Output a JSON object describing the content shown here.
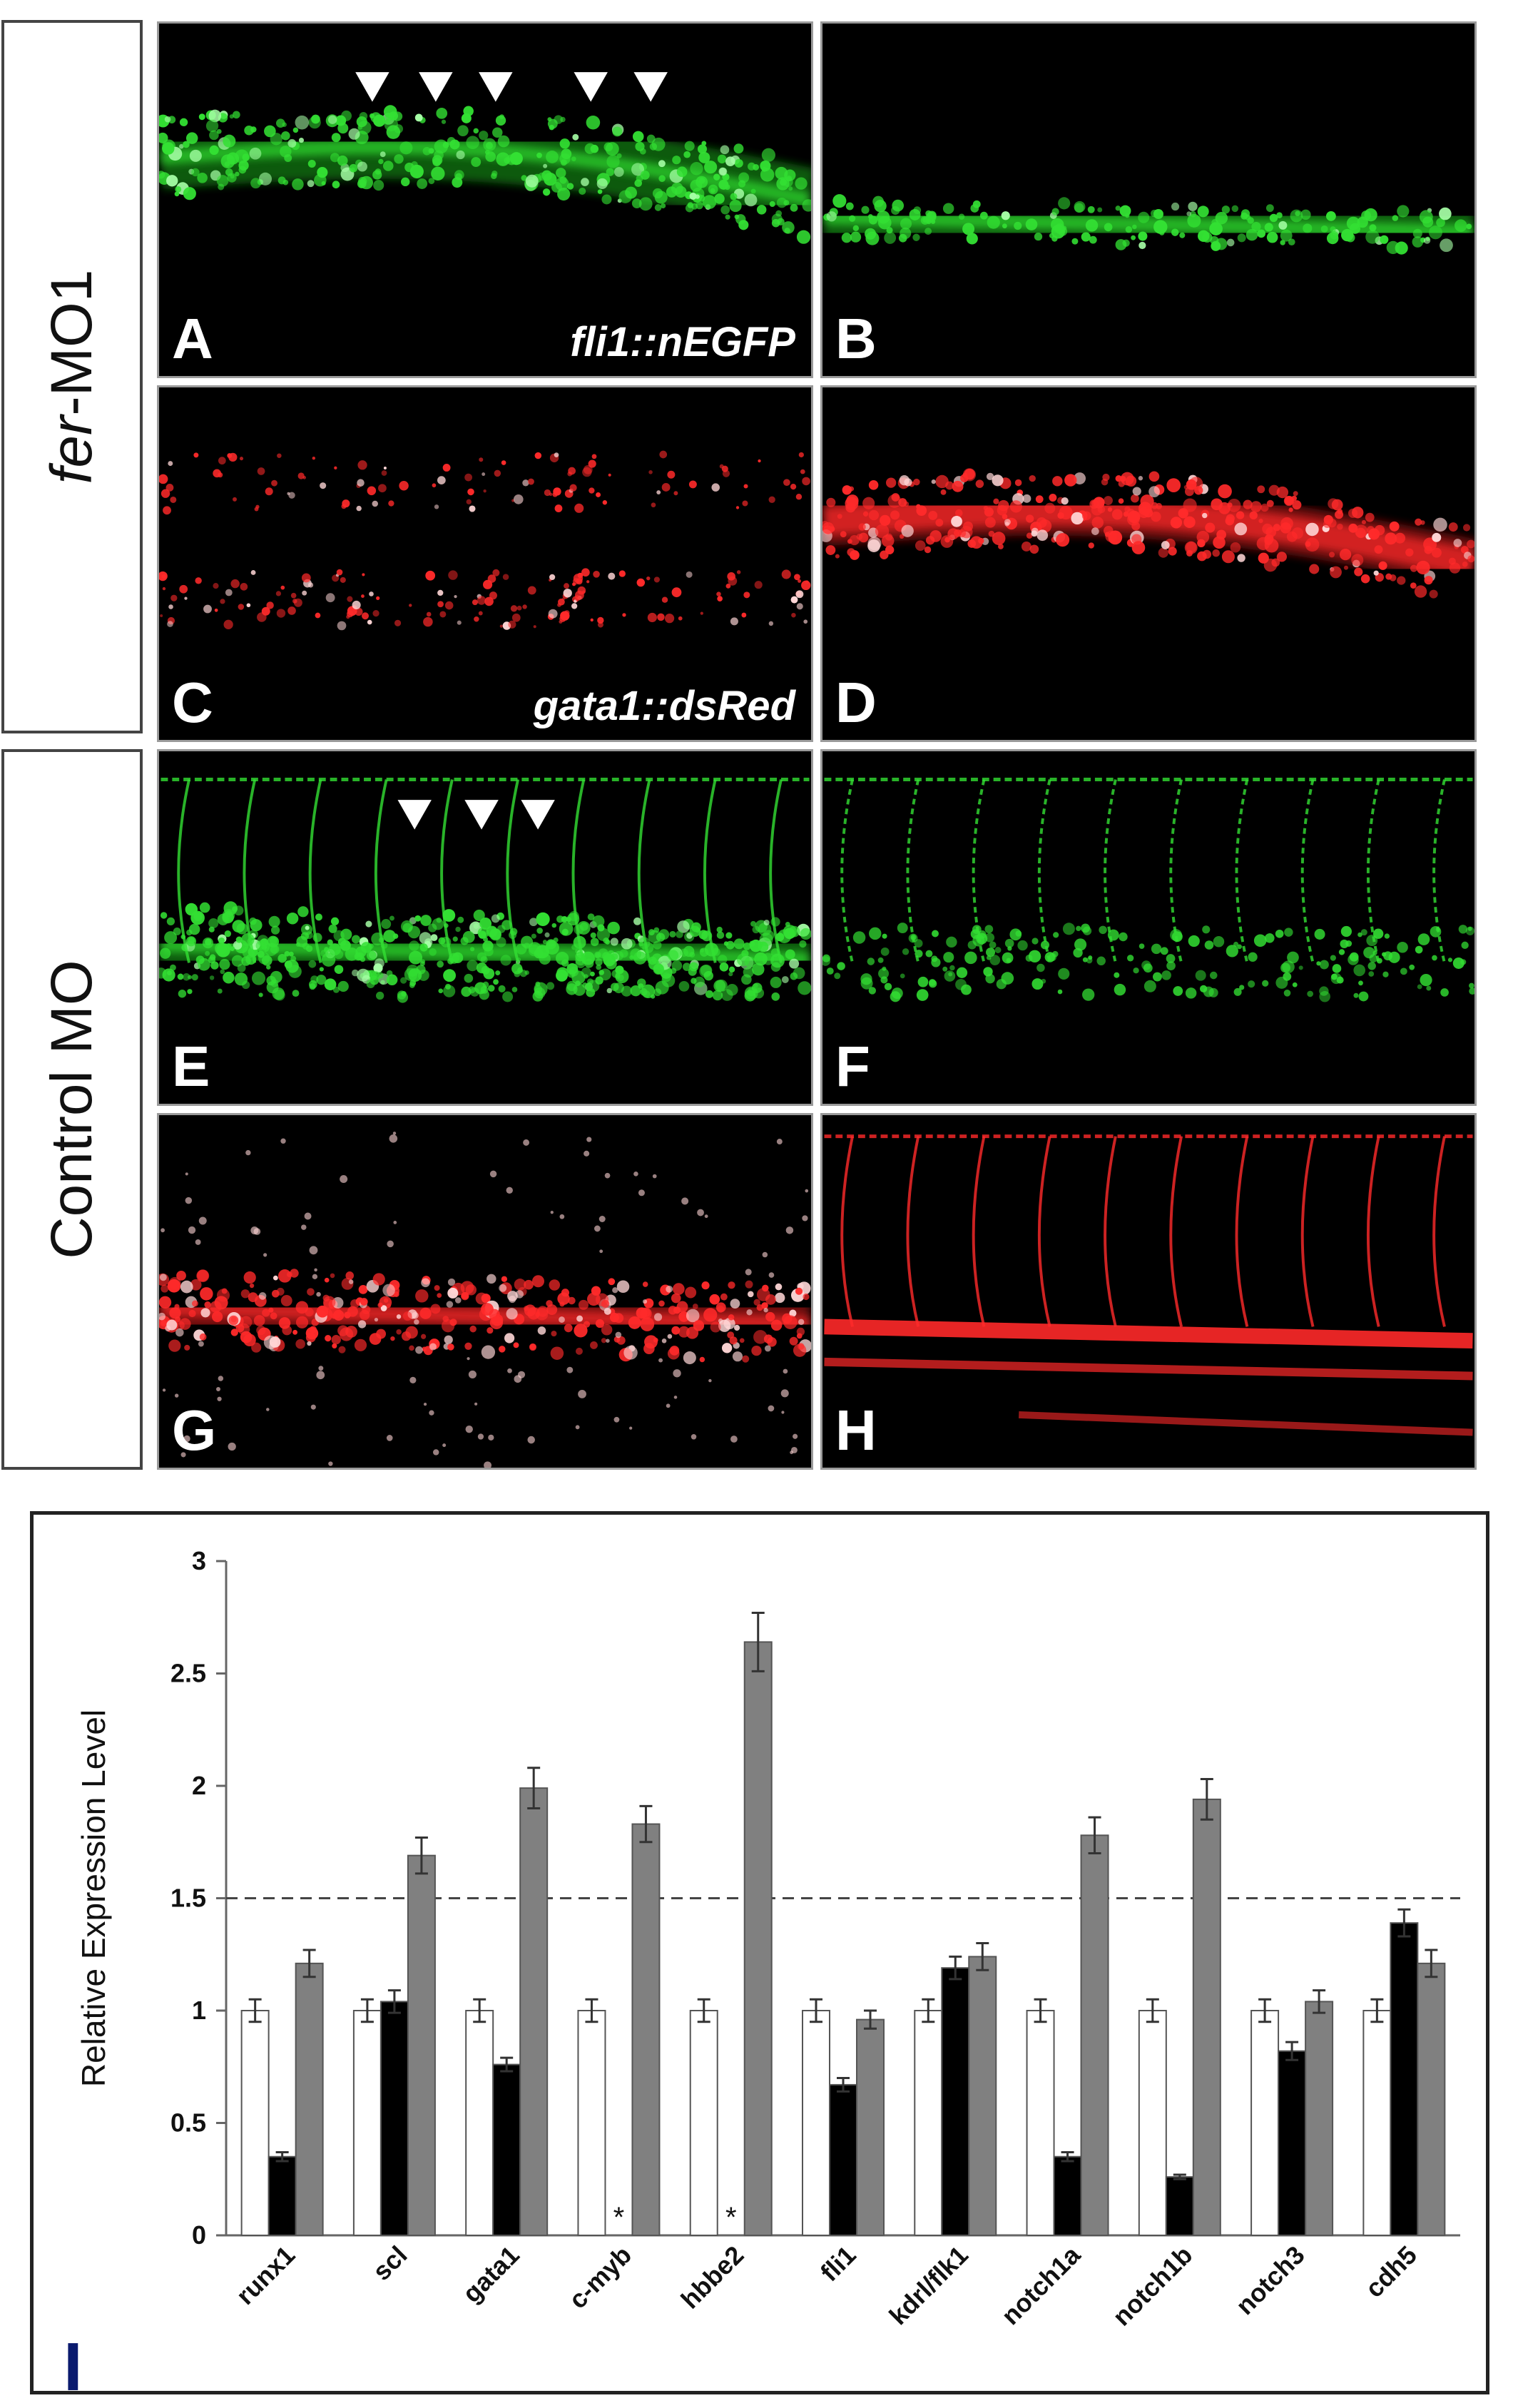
{
  "row_labels": {
    "top": {
      "gene": "fer",
      "suffix": "-MO1"
    },
    "bottom": "Control MO"
  },
  "panels": [
    {
      "id": "A",
      "letter": "A",
      "color": "green",
      "pattern": "dense-band",
      "text": "fli1::nEGFP",
      "arrowheads": 5
    },
    {
      "id": "B",
      "letter": "B",
      "color": "green",
      "pattern": "sparse-band",
      "text": "",
      "arrowheads": 0
    },
    {
      "id": "C",
      "letter": "C",
      "color": "red",
      "pattern": "dots",
      "text": "gata1::dsRed",
      "arrowheads": 0
    },
    {
      "id": "D",
      "letter": "D",
      "color": "red",
      "pattern": "bright-band",
      "text": "",
      "arrowheads": 0
    },
    {
      "id": "E",
      "letter": "E",
      "color": "green",
      "pattern": "dense-band-vessels",
      "text": "",
      "arrowheads": 3
    },
    {
      "id": "F",
      "letter": "F",
      "color": "green",
      "pattern": "vessels",
      "text": "",
      "arrowheads": 0
    },
    {
      "id": "G",
      "letter": "G",
      "color": "red",
      "pattern": "dots-band",
      "text": "",
      "arrowheads": 0
    },
    {
      "id": "H",
      "letter": "H",
      "color": "red",
      "pattern": "vessels-red",
      "text": "",
      "arrowheads": 0
    }
  ],
  "chart_data": {
    "type": "bar",
    "panel_letter": "I",
    "ylabel": "Relative Expression Level",
    "ylim": [
      0,
      3
    ],
    "yticks": [
      "0",
      "0.5",
      "1",
      "1.5",
      "2",
      "2.5",
      "3"
    ],
    "reference_line": 1.5,
    "categories": [
      "runx1",
      "scl",
      "gata1",
      "c-myb",
      "hbbe2",
      "fli1",
      "kdrl/flk1",
      "notch1a",
      "notch1b",
      "notch3",
      "cdh5"
    ],
    "series": [
      {
        "color": "#ffffff",
        "values": [
          1.0,
          1.0,
          1.0,
          1.0,
          1.0,
          1.0,
          1.0,
          1.0,
          1.0,
          1.0,
          1.0
        ],
        "errors": [
          0.05,
          0.05,
          0.05,
          0.05,
          0.05,
          0.05,
          0.05,
          0.05,
          0.05,
          0.05,
          0.05
        ]
      },
      {
        "color": "#000000",
        "values": [
          0.35,
          1.04,
          0.76,
          0,
          0,
          0.67,
          1.19,
          0.35,
          0.26,
          0.82,
          1.39
        ],
        "errors": [
          0.02,
          0.05,
          0.03,
          0,
          0,
          0.03,
          0.05,
          0.02,
          0.01,
          0.04,
          0.06
        ]
      },
      {
        "color": "#808080",
        "values": [
          1.21,
          1.69,
          1.99,
          1.83,
          2.64,
          0.96,
          1.24,
          1.78,
          1.94,
          1.04,
          1.21
        ],
        "errors": [
          0.06,
          0.08,
          0.09,
          0.08,
          0.13,
          0.04,
          0.06,
          0.08,
          0.09,
          0.05,
          0.06
        ]
      }
    ],
    "annotations": [
      {
        "category": "c-myb",
        "series": 1,
        "text": "*"
      },
      {
        "category": "hbbe2",
        "series": 1,
        "text": "*"
      }
    ]
  }
}
